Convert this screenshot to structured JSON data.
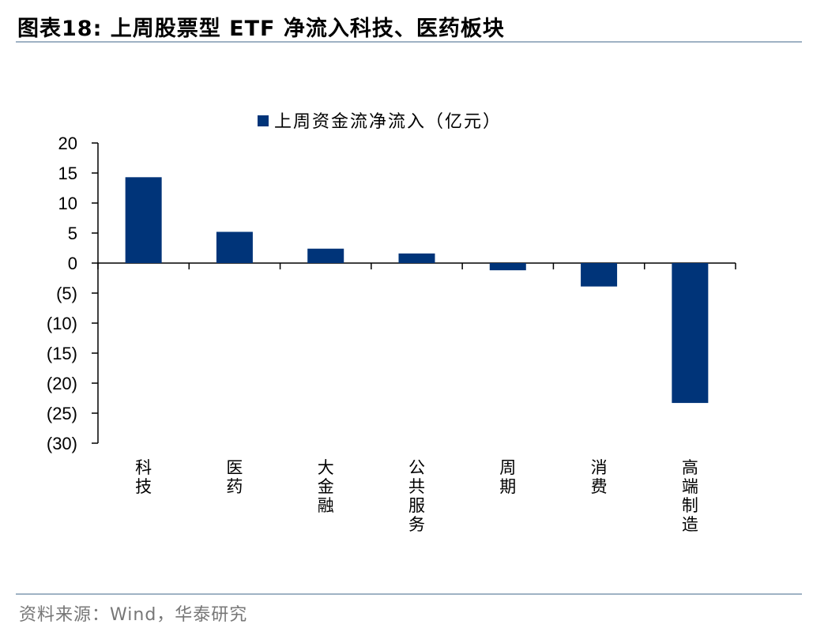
{
  "header": {
    "title": "图表18:  上周股票型 ETF 净流入科技、医药板块"
  },
  "footer": {
    "source": "资料来源：Wind，华泰研究"
  },
  "chart_data": {
    "type": "bar",
    "categories": [
      "科技",
      "医药",
      "大金融",
      "公共服务",
      "周期",
      "消费",
      "高端制造"
    ],
    "series": [
      {
        "name": "上周资金流净流入（亿元）",
        "values": [
          14.3,
          5.2,
          2.4,
          1.6,
          -1.2,
          -3.9,
          -23.3
        ],
        "color": "#003479"
      }
    ],
    "ylim": [
      -30,
      20
    ],
    "yticks": [
      20,
      15,
      10,
      5,
      0,
      -5,
      -10,
      -15,
      -20,
      -25,
      -30
    ],
    "ytick_labels": [
      "20",
      "15",
      "10",
      "5",
      "0",
      "(5)",
      "(10)",
      "(15)",
      "(20)",
      "(25)",
      "(30)"
    ],
    "legend_position": "top-center",
    "grid": false
  }
}
